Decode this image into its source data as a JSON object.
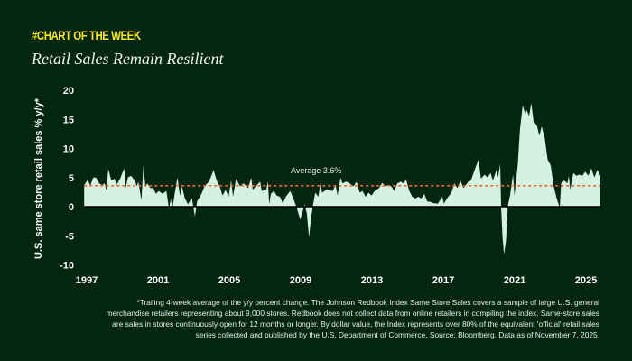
{
  "header": {
    "kicker": "#CHART OF THE WEEK",
    "title": "Retail Sales Remain Resilient"
  },
  "footnote": "*Trailing 4-week average of the y/y percent change. The Johnson Redbook Index Same Store Sales covers a sample of large U.S. general merchandise retailers representing about 9,000 stores. Redbook does not collect data from online retailers in compiling the index. Same-store sales are sales in stores continuously open for 12 months or longer. By dollar value, the Index represents over 80% of the equivalent 'official' retail sales series collected and published by the U.S. Department of Commerce. Source: Bloomberg. Data as of November 7, 2025.",
  "chart_data": {
    "type": "area",
    "title": "Retail Sales Remain Resilient",
    "xlabel": "",
    "ylabel": "U.S. same store retail sales % y/y*",
    "xlim": [
      1996.85,
      2026
    ],
    "ylim": [
      -10,
      20
    ],
    "x_ticks": [
      1997,
      2001,
      2005,
      2009,
      2013,
      2017,
      2021,
      2025
    ],
    "y_ticks": [
      -10,
      -5,
      0,
      5,
      10,
      15,
      20
    ],
    "grid": false,
    "colors": {
      "background": "#022610",
      "area": "#d4f1e1",
      "average_line": "#f2672a",
      "kicker": "#f5e626"
    },
    "average": {
      "value": 3.6,
      "label": "Average 3.6%",
      "style": "dashed"
    },
    "points": [
      [
        1996.86,
        3.7
      ],
      [
        1997.06,
        4.6
      ],
      [
        1997.2,
        3.6
      ],
      [
        1997.37,
        5.0
      ],
      [
        1997.53,
        5.0
      ],
      [
        1997.7,
        4.0
      ],
      [
        1997.87,
        3.7
      ],
      [
        1998.01,
        4.0
      ],
      [
        1998.11,
        2.8
      ],
      [
        1998.21,
        6.5
      ],
      [
        1998.38,
        4.5
      ],
      [
        1998.55,
        4.8
      ],
      [
        1998.68,
        3.8
      ],
      [
        1998.88,
        4.8
      ],
      [
        1999.1,
        6.6
      ],
      [
        1999.19,
        3.2
      ],
      [
        1999.31,
        5.0
      ],
      [
        1999.48,
        5.3
      ],
      [
        1999.7,
        4.5
      ],
      [
        1999.81,
        3.5
      ],
      [
        1999.9,
        4.3
      ],
      [
        2000.07,
        1.1
      ],
      [
        2000.18,
        7.0
      ],
      [
        2000.29,
        3.5
      ],
      [
        2000.4,
        4.0
      ],
      [
        2000.57,
        3.2
      ],
      [
        2000.74,
        3.2
      ],
      [
        2000.88,
        2.2
      ],
      [
        2001.04,
        2.7
      ],
      [
        2001.25,
        2.2
      ],
      [
        2001.47,
        2.7
      ],
      [
        2001.62,
        -0.4
      ],
      [
        2001.72,
        1.4
      ],
      [
        2001.8,
        -0.4
      ],
      [
        2001.92,
        1.9
      ],
      [
        2002.09,
        5.0
      ],
      [
        2002.23,
        1.9
      ],
      [
        2002.34,
        3.5
      ],
      [
        2002.51,
        1.4
      ],
      [
        2002.68,
        0.4
      ],
      [
        2002.9,
        1.5
      ],
      [
        2003.07,
        -1.7
      ],
      [
        2003.19,
        0.9
      ],
      [
        2003.44,
        2.2
      ],
      [
        2003.61,
        3.5
      ],
      [
        2003.86,
        4.3
      ],
      [
        2004.12,
        6.3
      ],
      [
        2004.29,
        4.5
      ],
      [
        2004.46,
        3.5
      ],
      [
        2004.62,
        1.9
      ],
      [
        2004.79,
        2.9
      ],
      [
        2004.96,
        1.7
      ],
      [
        2005.1,
        4.5
      ],
      [
        2005.21,
        1.7
      ],
      [
        2005.38,
        4.8
      ],
      [
        2005.6,
        3.5
      ],
      [
        2005.8,
        4.0
      ],
      [
        2006.06,
        3.2
      ],
      [
        2006.23,
        5.0
      ],
      [
        2006.31,
        2.9
      ],
      [
        2006.48,
        3.5
      ],
      [
        2006.73,
        4.3
      ],
      [
        2006.82,
        2.7
      ],
      [
        2007.07,
        2.9
      ],
      [
        2007.16,
        4.3
      ],
      [
        2007.24,
        0.4
      ],
      [
        2007.33,
        2.2
      ],
      [
        2007.5,
        2.7
      ],
      [
        2007.66,
        1.9
      ],
      [
        2007.83,
        1.7
      ],
      [
        2008.0,
        0.6
      ],
      [
        2008.17,
        1.7
      ],
      [
        2008.42,
        2.7
      ],
      [
        2008.59,
        1.4
      ],
      [
        2008.76,
        0.0
      ],
      [
        2008.85,
        -0.9
      ],
      [
        2008.98,
        -2.2
      ],
      [
        2009.1,
        -0.9
      ],
      [
        2009.23,
        0.4
      ],
      [
        2009.35,
        -1.2
      ],
      [
        2009.47,
        -5.3
      ],
      [
        2009.57,
        -2.2
      ],
      [
        2009.69,
        0.2
      ],
      [
        2009.82,
        2.4
      ],
      [
        2009.99,
        1.7
      ],
      [
        2010.11,
        4.0
      ],
      [
        2010.2,
        2.4
      ],
      [
        2010.45,
        2.9
      ],
      [
        2010.79,
        2.7
      ],
      [
        2010.96,
        3.7
      ],
      [
        2011.07,
        1.9
      ],
      [
        2011.24,
        5.0
      ],
      [
        2011.34,
        4.0
      ],
      [
        2011.55,
        4.3
      ],
      [
        2011.75,
        4.0
      ],
      [
        2011.97,
        3.5
      ],
      [
        2012.14,
        4.3
      ],
      [
        2012.31,
        2.4
      ],
      [
        2012.47,
        2.7
      ],
      [
        2012.64,
        1.7
      ],
      [
        2012.81,
        2.4
      ],
      [
        2012.98,
        1.9
      ],
      [
        2013.15,
        2.7
      ],
      [
        2013.4,
        3.2
      ],
      [
        2013.57,
        4.1
      ],
      [
        2013.74,
        3.5
      ],
      [
        2013.91,
        3.7
      ],
      [
        2014.08,
        3.5
      ],
      [
        2014.25,
        2.7
      ],
      [
        2014.42,
        4.0
      ],
      [
        2014.62,
        4.3
      ],
      [
        2014.75,
        4.0
      ],
      [
        2014.92,
        4.6
      ],
      [
        2015.09,
        2.7
      ],
      [
        2015.26,
        1.7
      ],
      [
        2015.43,
        1.4
      ],
      [
        2015.6,
        1.7
      ],
      [
        2015.77,
        1.4
      ],
      [
        2015.93,
        2.2
      ],
      [
        2016.1,
        0.9
      ],
      [
        2016.27,
        0.8
      ],
      [
        2016.44,
        0.6
      ],
      [
        2016.69,
        0.5
      ],
      [
        2016.95,
        1.7
      ],
      [
        2017.03,
        0.5
      ],
      [
        2017.2,
        1.4
      ],
      [
        2017.45,
        2.4
      ],
      [
        2017.62,
        4.0
      ],
      [
        2017.79,
        3.2
      ],
      [
        2017.96,
        4.5
      ],
      [
        2018.13,
        3.2
      ],
      [
        2018.38,
        4.2
      ],
      [
        2018.55,
        4.5
      ],
      [
        2018.72,
        6.0
      ],
      [
        2018.97,
        8.1
      ],
      [
        2019.11,
        4.8
      ],
      [
        2019.31,
        5.5
      ],
      [
        2019.48,
        5.0
      ],
      [
        2019.65,
        5.8
      ],
      [
        2019.78,
        4.5
      ],
      [
        2019.98,
        6.3
      ],
      [
        2020.07,
        5.0
      ],
      [
        2020.19,
        7.3
      ],
      [
        2020.24,
        0.0
      ],
      [
        2020.32,
        -5.3
      ],
      [
        2020.41,
        -8.2
      ],
      [
        2020.52,
        -5.8
      ],
      [
        2020.61,
        0.0
      ],
      [
        2020.74,
        1.9
      ],
      [
        2020.91,
        5.5
      ],
      [
        2020.99,
        1.9
      ],
      [
        2021.17,
        7.1
      ],
      [
        2021.3,
        13.3
      ],
      [
        2021.45,
        17.4
      ],
      [
        2021.59,
        15.9
      ],
      [
        2021.67,
        16.6
      ],
      [
        2021.81,
        15.6
      ],
      [
        2021.93,
        17.8
      ],
      [
        2022.06,
        14.8
      ],
      [
        2022.26,
        13.8
      ],
      [
        2022.38,
        12.2
      ],
      [
        2022.52,
        13.8
      ],
      [
        2022.69,
        11.7
      ],
      [
        2022.85,
        8.1
      ],
      [
        2023.02,
        7.1
      ],
      [
        2023.19,
        3.5
      ],
      [
        2023.36,
        1.4
      ],
      [
        2023.53,
        -0.2
      ],
      [
        2023.61,
        4.0
      ],
      [
        2023.78,
        4.5
      ],
      [
        2023.95,
        4.0
      ],
      [
        2024.04,
        5.3
      ],
      [
        2024.12,
        2.9
      ],
      [
        2024.29,
        5.8
      ],
      [
        2024.46,
        5.3
      ],
      [
        2024.63,
        5.5
      ],
      [
        2024.8,
        5.3
      ],
      [
        2024.96,
        6.0
      ],
      [
        2025.13,
        5.3
      ],
      [
        2025.3,
        6.6
      ],
      [
        2025.47,
        5.0
      ],
      [
        2025.64,
        6.3
      ],
      [
        2025.81,
        5.3
      ]
    ]
  }
}
